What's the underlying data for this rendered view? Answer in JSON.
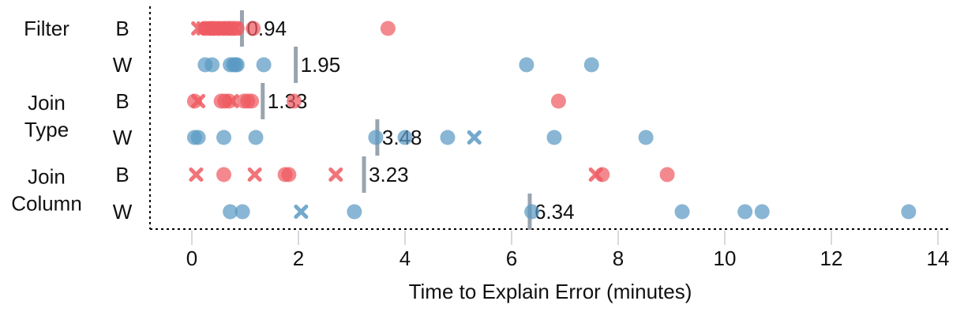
{
  "chart_data": {
    "type": "scatter",
    "xlabel": "Time to Explain Error (minutes)",
    "xlim": [
      -0.8,
      14.3
    ],
    "xticks": [
      0,
      2,
      4,
      6,
      8,
      10,
      12,
      14
    ],
    "grid": "vertical",
    "colors": {
      "B": "#ee5c62",
      "W": "#5a9ac4",
      "median_bar": "#9aa4ae"
    },
    "groups": [
      {
        "label": "Filter",
        "rows": [
          0,
          1
        ]
      },
      {
        "label": "Join\nType",
        "rows": [
          2,
          3
        ]
      },
      {
        "label": "Join\nColumn",
        "rows": [
          4,
          5
        ]
      }
    ],
    "rows": [
      {
        "label": "B",
        "median": 0.94,
        "median_label": "0.94",
        "points": [
          {
            "x": 0.12,
            "m": "x"
          },
          {
            "x": 0.22,
            "m": "x"
          },
          {
            "x": 0.3,
            "m": "x"
          },
          {
            "x": 0.38,
            "m": "x"
          },
          {
            "x": 0.45,
            "m": "x"
          },
          {
            "x": 0.52,
            "m": "x"
          },
          {
            "x": 0.6,
            "m": "x"
          },
          {
            "x": 0.7,
            "m": "x"
          },
          {
            "x": 0.8,
            "m": "x"
          },
          {
            "x": 0.25,
            "m": "o"
          },
          {
            "x": 0.35,
            "m": "o"
          },
          {
            "x": 0.42,
            "m": "o"
          },
          {
            "x": 0.5,
            "m": "o"
          },
          {
            "x": 0.58,
            "m": "o"
          },
          {
            "x": 0.65,
            "m": "o"
          },
          {
            "x": 0.72,
            "m": "o"
          },
          {
            "x": 0.78,
            "m": "o"
          },
          {
            "x": 0.85,
            "m": "o"
          },
          {
            "x": 1.15,
            "m": "o"
          },
          {
            "x": 3.68,
            "m": "o"
          }
        ]
      },
      {
        "label": "W",
        "median": 1.95,
        "median_label": "1.95",
        "points": [
          {
            "x": 0.25,
            "m": "o"
          },
          {
            "x": 0.38,
            "m": "o"
          },
          {
            "x": 0.72,
            "m": "o"
          },
          {
            "x": 0.78,
            "m": "o"
          },
          {
            "x": 0.82,
            "m": "o"
          },
          {
            "x": 0.85,
            "m": "o"
          },
          {
            "x": 1.35,
            "m": "o"
          },
          {
            "x": 6.28,
            "m": "o"
          },
          {
            "x": 7.5,
            "m": "o"
          }
        ]
      },
      {
        "label": "B",
        "median": 1.33,
        "median_label": "1.33",
        "points": [
          {
            "x": 0.05,
            "m": "o"
          },
          {
            "x": 0.12,
            "m": "x"
          },
          {
            "x": 0.55,
            "m": "o"
          },
          {
            "x": 0.62,
            "m": "o"
          },
          {
            "x": 0.7,
            "m": "o"
          },
          {
            "x": 0.75,
            "m": "x"
          },
          {
            "x": 0.98,
            "m": "o"
          },
          {
            "x": 1.05,
            "m": "o"
          },
          {
            "x": 1.12,
            "m": "o"
          },
          {
            "x": 1.92,
            "m": "o"
          },
          {
            "x": 6.88,
            "m": "o"
          }
        ]
      },
      {
        "label": "W",
        "median": 3.48,
        "median_label": "3.48",
        "points": [
          {
            "x": 0.05,
            "m": "o"
          },
          {
            "x": 0.12,
            "m": "o"
          },
          {
            "x": 0.6,
            "m": "o"
          },
          {
            "x": 1.2,
            "m": "o"
          },
          {
            "x": 3.45,
            "m": "o"
          },
          {
            "x": 4.0,
            "m": "o"
          },
          {
            "x": 4.8,
            "m": "o"
          },
          {
            "x": 5.3,
            "m": "x"
          },
          {
            "x": 6.8,
            "m": "o"
          },
          {
            "x": 8.52,
            "m": "o"
          }
        ]
      },
      {
        "label": "B",
        "median": 3.23,
        "median_label": "3.23",
        "points": [
          {
            "x": 0.08,
            "m": "x"
          },
          {
            "x": 0.6,
            "m": "o"
          },
          {
            "x": 1.18,
            "m": "x"
          },
          {
            "x": 1.75,
            "m": "o"
          },
          {
            "x": 1.82,
            "m": "o"
          },
          {
            "x": 2.7,
            "m": "x"
          },
          {
            "x": 7.58,
            "m": "x"
          },
          {
            "x": 7.7,
            "m": "o"
          },
          {
            "x": 8.92,
            "m": "o"
          }
        ]
      },
      {
        "label": "W",
        "median": 6.34,
        "median_label": "6.34",
        "points": [
          {
            "x": 0.72,
            "m": "o"
          },
          {
            "x": 0.95,
            "m": "o"
          },
          {
            "x": 2.05,
            "m": "x"
          },
          {
            "x": 3.05,
            "m": "o"
          },
          {
            "x": 6.38,
            "m": "o"
          },
          {
            "x": 9.2,
            "m": "o"
          },
          {
            "x": 10.38,
            "m": "o"
          },
          {
            "x": 10.7,
            "m": "o"
          },
          {
            "x": 13.45,
            "m": "o"
          }
        ]
      }
    ]
  }
}
